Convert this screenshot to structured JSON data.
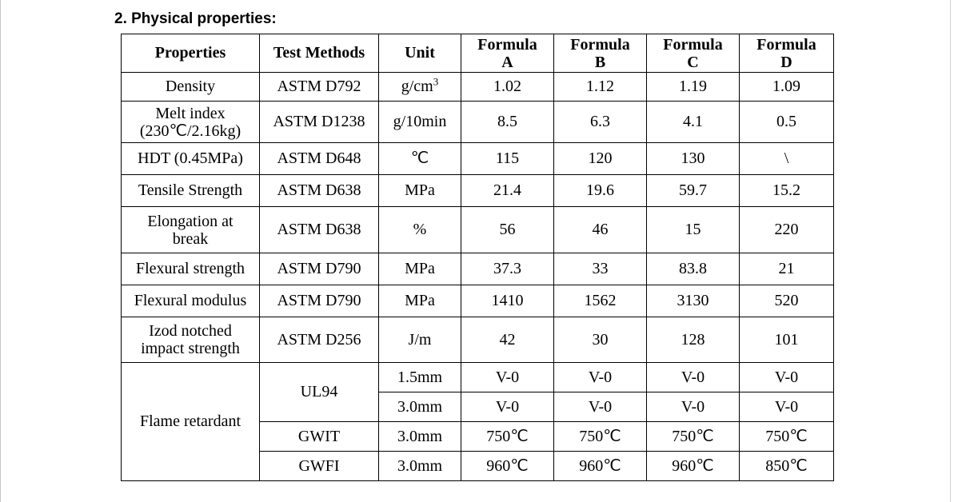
{
  "heading": "2. Physical properties:",
  "headers": {
    "properties": "Properties",
    "test_methods": "Test Methods",
    "unit": "Unit",
    "formulas": [
      {
        "line1": "Formula",
        "line2": "A"
      },
      {
        "line1": "Formula",
        "line2": "B"
      },
      {
        "line1": "Formula",
        "line2": "C"
      },
      {
        "line1": "Formula",
        "line2": "D"
      }
    ]
  },
  "rows": [
    {
      "property": "Density",
      "property2": "",
      "method": "ASTM D792",
      "unit_base": "g/cm",
      "unit_sup": "3",
      "values": [
        "1.02",
        "1.12",
        "1.19",
        "1.09"
      ]
    },
    {
      "property": "Melt index",
      "property2": "(230℃/2.16kg)",
      "method": "ASTM D1238",
      "unit": "g/10min",
      "values": [
        "8.5",
        "6.3",
        "4.1",
        "0.5"
      ]
    },
    {
      "property": "HDT (0.45MPa)",
      "method": "ASTM D648",
      "unit": "℃",
      "values": [
        "115",
        "120",
        "130",
        "\\"
      ]
    },
    {
      "property": "Tensile Strength",
      "method": "ASTM D638",
      "unit": "MPa",
      "values": [
        "21.4",
        "19.6",
        "59.7",
        "15.2"
      ]
    },
    {
      "property": "Elongation at",
      "property2": "break",
      "method": "ASTM D638",
      "unit": "%",
      "values": [
        "56",
        "46",
        "15",
        "220"
      ]
    },
    {
      "property": "Flexural strength",
      "method": "ASTM D790",
      "unit": "MPa",
      "values": [
        "37.3",
        "33",
        "83.8",
        "21"
      ]
    },
    {
      "property": "Flexural modulus",
      "method": "ASTM D790",
      "unit": "MPa",
      "values": [
        "1410",
        "1562",
        "3130",
        "520"
      ]
    },
    {
      "property": "Izod notched",
      "property2": "impact strength",
      "method": "ASTM D256",
      "unit": "J/m",
      "values": [
        "42",
        "30",
        "128",
        "101"
      ]
    }
  ],
  "flame": {
    "property": "Flame retardant",
    "ul94": {
      "method": "UL94",
      "rows": [
        {
          "unit": "1.5mm",
          "values": [
            "V-0",
            "V-0",
            "V-0",
            "V-0"
          ]
        },
        {
          "unit": "3.0mm",
          "values": [
            "V-0",
            "V-0",
            "V-0",
            "V-0"
          ]
        }
      ]
    },
    "gwit": {
      "method": "GWIT",
      "unit": "3.0mm",
      "values": [
        "750℃",
        "750℃",
        "750℃",
        "750℃"
      ]
    },
    "gwfi": {
      "method": "GWFI",
      "unit": "3.0mm",
      "values": [
        "960℃",
        "960℃",
        "960℃",
        "850℃"
      ]
    }
  }
}
